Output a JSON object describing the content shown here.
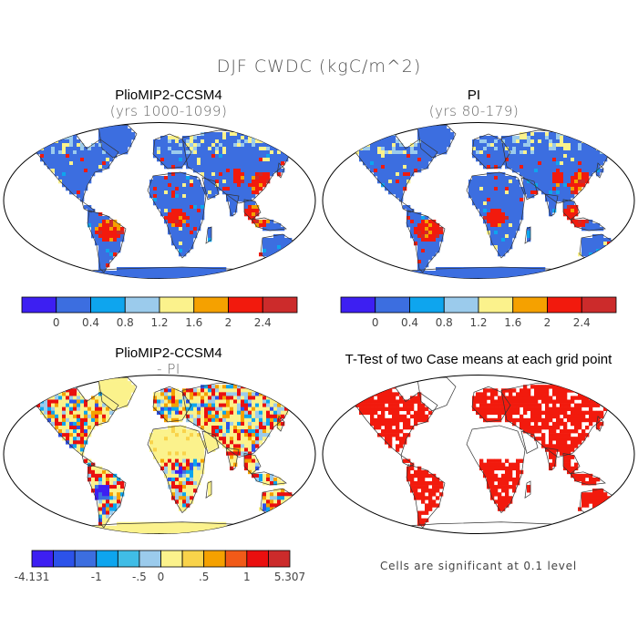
{
  "figure": {
    "title": "DJF CWDC (kgC/m^2)",
    "note": "Cells are significant at 0.1 level"
  },
  "panels": [
    {
      "id": "p1",
      "title": "PlioMIP2-CCSM4",
      "subtitle": "(yrs 1000-1099)"
    },
    {
      "id": "p2",
      "title": "PI",
      "subtitle": "(yrs 80-179)"
    },
    {
      "id": "p3",
      "title": "PlioMIP2-CCSM4",
      "subtitle": "- PI"
    },
    {
      "id": "p4",
      "title": "T-Test of two Case means at each grid point",
      "subtitle": ""
    }
  ],
  "colorbars": {
    "top": {
      "colors": [
        "#3d1ff2",
        "#3c6ee0",
        "#0ea5ee",
        "#9bcbec",
        "#fbf28c",
        "#f5a100",
        "#f21a0d",
        "#cc2b2b"
      ],
      "labels": [
        "0",
        "0.4",
        "0.8",
        "1.2",
        "1.6",
        "2",
        "2.4"
      ]
    },
    "bottom": {
      "colors": [
        "#3d1ff2",
        "#2c52ea",
        "#3c6ee0",
        "#0ea5ee",
        "#40bde6",
        "#9bcbec",
        "#fbf28c",
        "#f9d34a",
        "#f5a100",
        "#f15a18",
        "#ea0f0f",
        "#cc2b2b"
      ],
      "labels": [
        "-4.131",
        "-1",
        "-.5",
        "0",
        ".5",
        "1",
        "5.307"
      ]
    }
  },
  "palette": {
    "ocean": "#ffffff",
    "coast": "#333333",
    "land_low": "#3c6ee0",
    "land_high": "#f21a0d",
    "diff_base": "#fbf28c",
    "signif": "#f21a0d"
  }
}
